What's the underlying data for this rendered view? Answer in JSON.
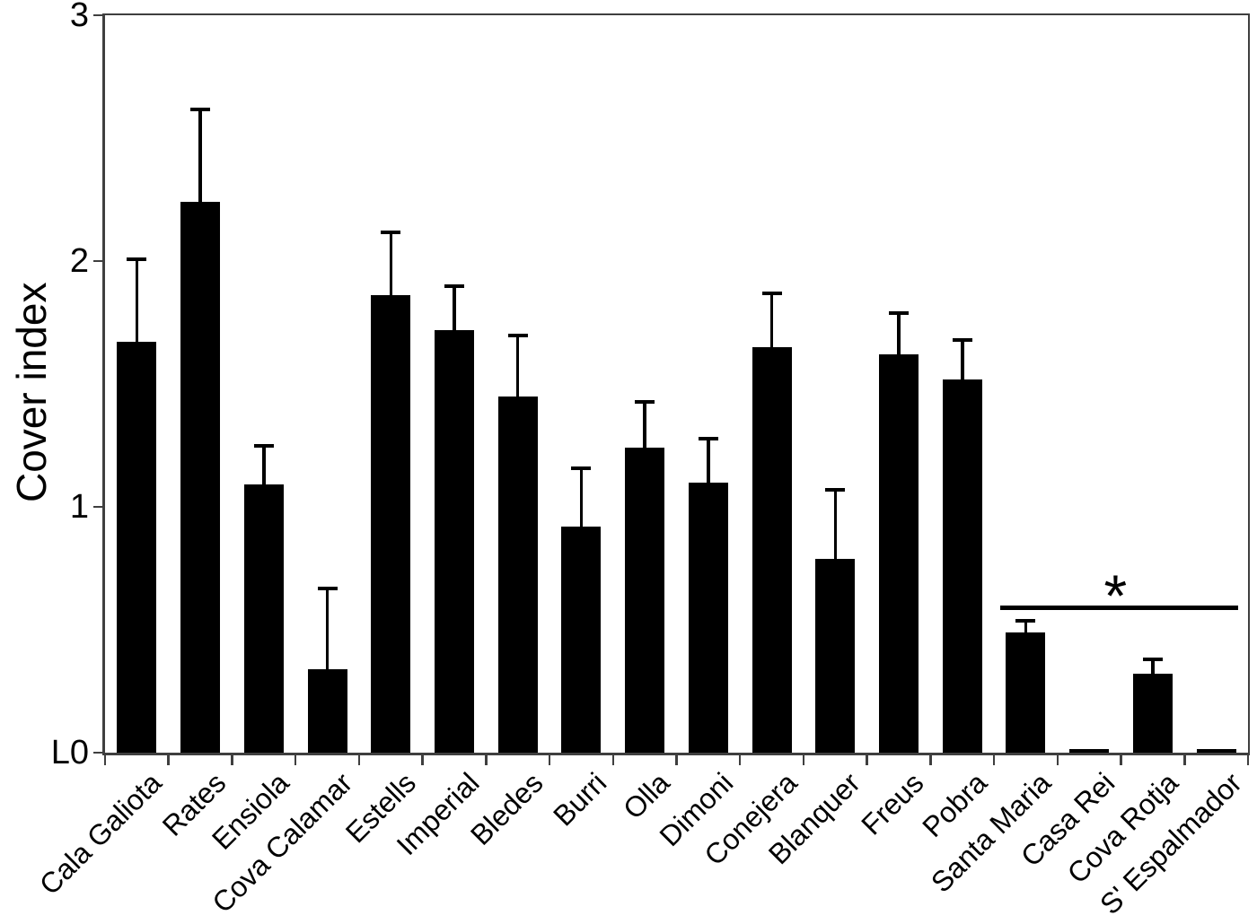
{
  "figure": {
    "background": "#ffffff",
    "frame_color": "#3f3f3f",
    "bar_color": "#000000",
    "text_color": "#000000"
  },
  "chart_data": {
    "type": "bar",
    "title": "",
    "xlabel": "",
    "ylabel": "Cover index",
    "ylim": [
      0,
      3
    ],
    "grid": "off",
    "legend": "none",
    "error_bars": "upper only",
    "yticks": [
      {
        "value": 3,
        "label": "3"
      },
      {
        "value": 2,
        "label": "2"
      },
      {
        "value": 1,
        "label": "1"
      },
      {
        "value": 0,
        "label": "L0"
      }
    ],
    "categories": [
      "Cala Galiota",
      "Rates",
      "Ensiola",
      "Cova Calamar",
      "Estells",
      "Imperial",
      "Bledes",
      "Burri",
      "Olla",
      "Dimoni",
      "Conejera",
      "Blanquer",
      "Freus",
      "Pobra",
      "Santa Maria",
      "Casa Rei",
      "Cova Rotja",
      "S' Espalmador"
    ],
    "values": [
      1.67,
      2.24,
      1.09,
      0.34,
      1.86,
      1.72,
      1.45,
      0.92,
      1.24,
      1.1,
      1.65,
      0.79,
      1.62,
      1.52,
      0.49,
      0.015,
      0.32,
      0.015
    ],
    "errors_upper": [
      0.34,
      0.38,
      0.16,
      0.33,
      0.26,
      0.18,
      0.25,
      0.24,
      0.19,
      0.18,
      0.22,
      0.28,
      0.17,
      0.16,
      0.05,
      0,
      0.06,
      0
    ],
    "significance": {
      "symbol": "*",
      "from_category": "Santa Maria",
      "to_category": "S' Espalmador",
      "line_y": 0.59
    }
  }
}
